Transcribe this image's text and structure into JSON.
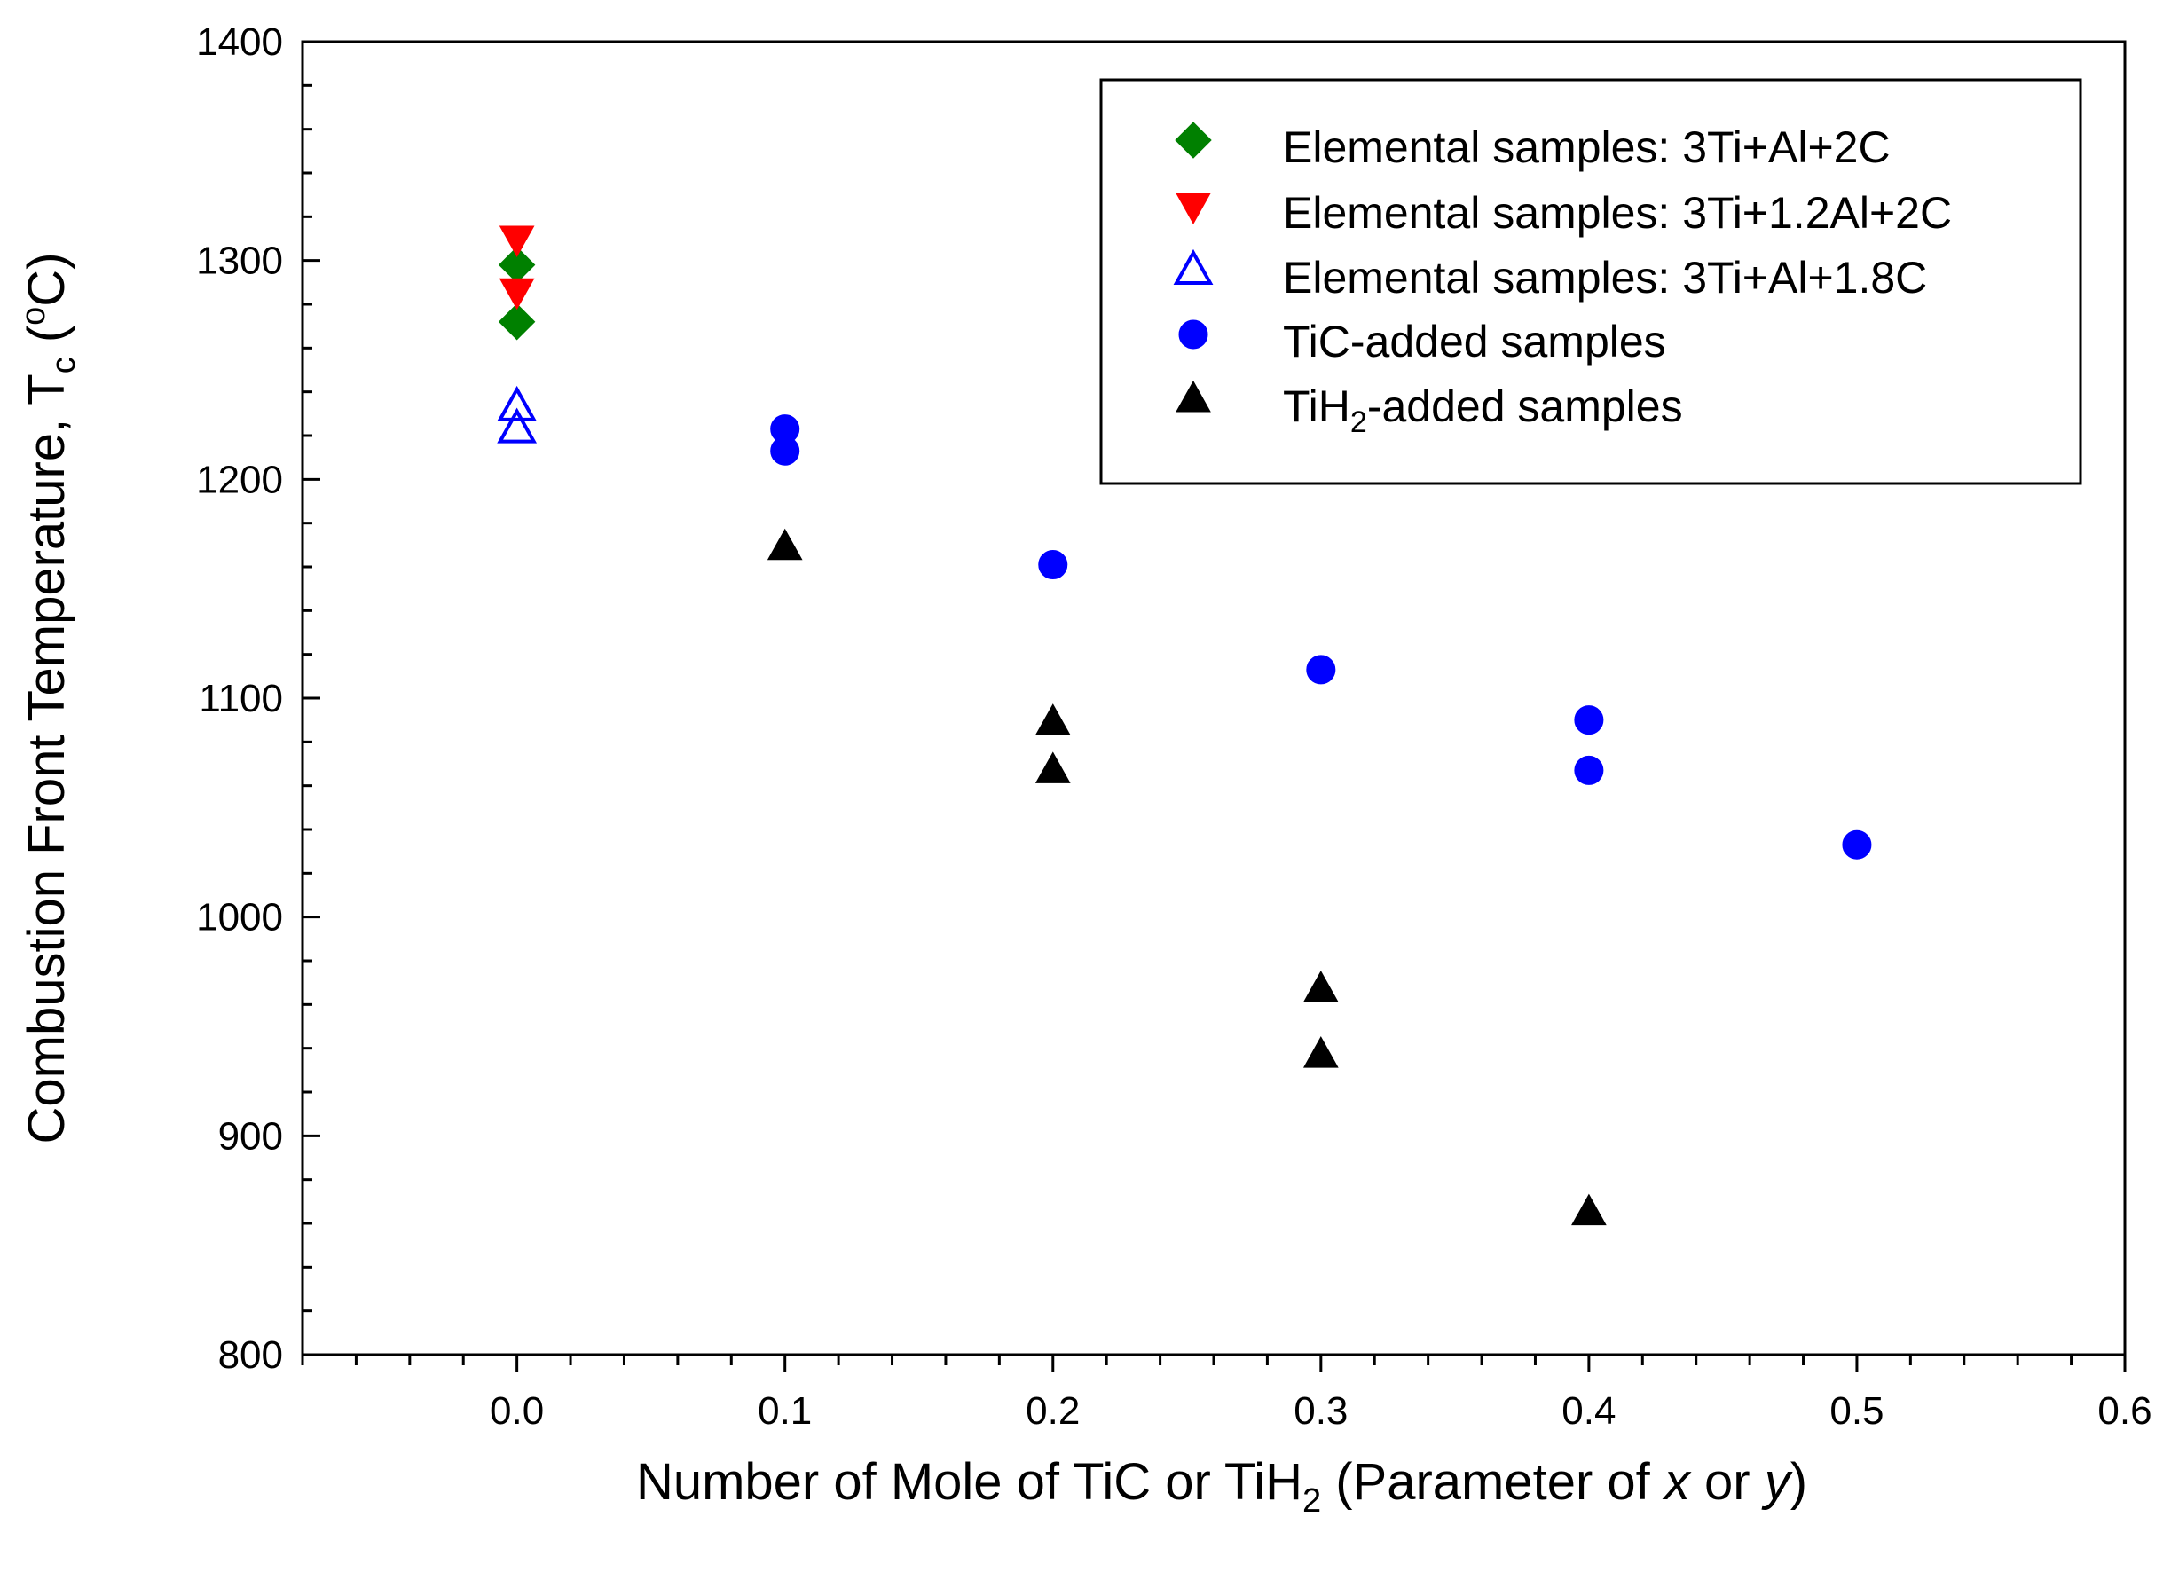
{
  "chart_data": {
    "type": "scatter",
    "title": "",
    "xlabel": {
      "main": "Number of Mole of TiC or TiH",
      "sub": "2",
      "open": " (Parameter of ",
      "x_var": "x",
      "or": " or ",
      "y_var": "y",
      "close": ")"
    },
    "ylabel": {
      "main": "Combustion Front Temperature, T",
      "sub": "c",
      "open": " (",
      "sup": "o",
      "unit": "C)"
    },
    "xlim": [
      -0.08,
      0.6
    ],
    "ylim": [
      800,
      1400
    ],
    "x_ticks": [
      {
        "value": 0.0,
        "label": "0.0"
      },
      {
        "value": 0.1,
        "label": "0.1"
      },
      {
        "value": 0.2,
        "label": "0.2"
      },
      {
        "value": 0.3,
        "label": "0.3"
      },
      {
        "value": 0.4,
        "label": "0.4"
      },
      {
        "value": 0.5,
        "label": "0.5"
      },
      {
        "value": 0.6,
        "label": "0.6"
      }
    ],
    "y_ticks": [
      {
        "value": 800,
        "label": "800"
      },
      {
        "value": 900,
        "label": "900"
      },
      {
        "value": 1000,
        "label": "1000"
      },
      {
        "value": 1100,
        "label": "1100"
      },
      {
        "value": 1200,
        "label": "1200"
      },
      {
        "value": 1300,
        "label": "1300"
      },
      {
        "value": 1400,
        "label": "1400"
      }
    ],
    "grid": false,
    "legend_position": "top-right",
    "series": [
      {
        "name": "Elemental samples: 3Ti+Al+2C",
        "label": "Elemental samples: 3Ti+Al+2C",
        "marker": "diamond",
        "color": "#008000",
        "filled": true,
        "points": [
          {
            "x": 0.0,
            "y": 1298
          },
          {
            "x": 0.0,
            "y": 1272
          }
        ]
      },
      {
        "name": "Elemental samples: 3Ti+1.2Al+2C",
        "label": "Elemental samples: 3Ti+1.2Al+2C",
        "marker": "triangle-down",
        "color": "#ff0000",
        "filled": true,
        "points": [
          {
            "x": 0.0,
            "y": 1310
          },
          {
            "x": 0.0,
            "y": 1286
          }
        ]
      },
      {
        "name": "Elemental samples: 3Ti+Al+1.8C",
        "label": "Elemental samples: 3Ti+Al+1.8C",
        "marker": "triangle-up",
        "color": "#0000ff",
        "filled": false,
        "points": [
          {
            "x": 0.0,
            "y": 1233
          },
          {
            "x": 0.0,
            "y": 1223
          }
        ]
      },
      {
        "name": "TiC-added samples",
        "label": "TiC-added samples",
        "marker": "circle",
        "color": "#0000ff",
        "filled": true,
        "points": [
          {
            "x": 0.1,
            "y": 1223
          },
          {
            "x": 0.1,
            "y": 1213
          },
          {
            "x": 0.2,
            "y": 1161
          },
          {
            "x": 0.3,
            "y": 1113
          },
          {
            "x": 0.4,
            "y": 1090
          },
          {
            "x": 0.4,
            "y": 1067
          },
          {
            "x": 0.5,
            "y": 1033
          }
        ]
      },
      {
        "name": "TiH2-added samples",
        "label_main": "TiH",
        "label_sub": "2",
        "label_rest": "-added samples",
        "marker": "triangle-up",
        "color": "#000000",
        "filled": true,
        "points": [
          {
            "x": 0.1,
            "y": 1169
          },
          {
            "x": 0.2,
            "y": 1089
          },
          {
            "x": 0.2,
            "y": 1067
          },
          {
            "x": 0.3,
            "y": 967
          },
          {
            "x": 0.3,
            "y": 937
          },
          {
            "x": 0.4,
            "y": 865
          }
        ]
      }
    ]
  }
}
